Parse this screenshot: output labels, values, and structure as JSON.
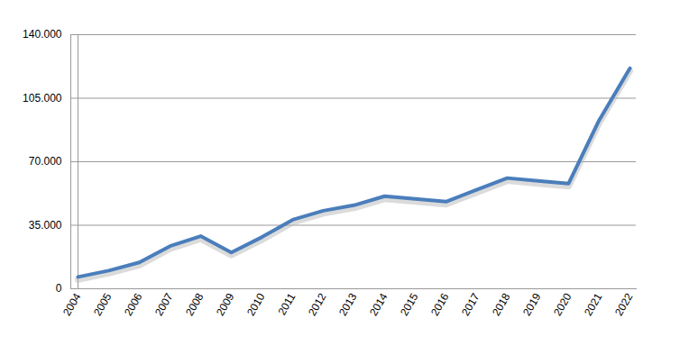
{
  "chart_data": {
    "type": "line",
    "categories": [
      "2004",
      "2005",
      "2006",
      "2007",
      "2008",
      "2009",
      "2010",
      "2011",
      "2012",
      "2013",
      "2014",
      "2015",
      "2016",
      "2017",
      "2018",
      "2019",
      "2020",
      "2021",
      "2022"
    ],
    "values": [
      6500,
      10000,
      14500,
      23500,
      29000,
      20000,
      28500,
      38000,
      43000,
      46000,
      51000,
      49500,
      48000,
      54500,
      61000,
      59500,
      58000,
      93000,
      121500
    ],
    "color": "#4a7ebb",
    "ylim": [
      0,
      140000
    ],
    "yticks": [
      0,
      {
        "value": 35000,
        "label": "35.000"
      },
      {
        "value": 70000,
        "label": "70.000"
      },
      {
        "value": 105000,
        "label": "105.000"
      },
      {
        "value": 140000,
        "label": "140.000"
      }
    ],
    "grid": true
  }
}
